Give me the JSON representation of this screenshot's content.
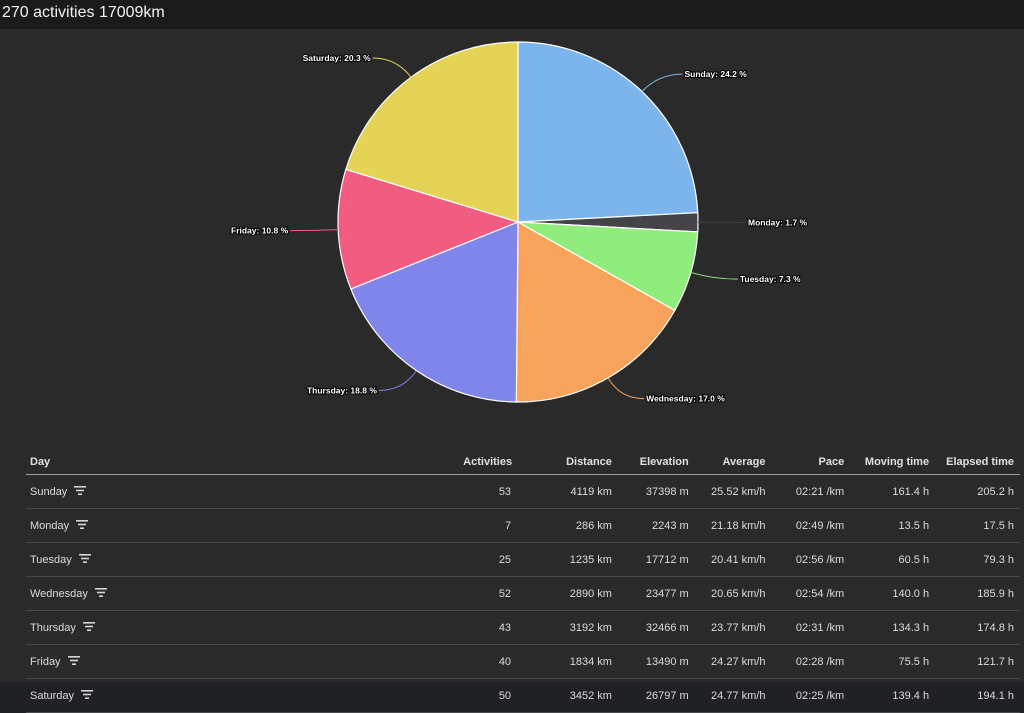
{
  "header": {
    "title": "270 activities 17009km"
  },
  "chart_data": {
    "type": "pie",
    "labels_format": "{label}: {value} %",
    "slices": [
      {
        "label": "Sunday",
        "value": 24.2,
        "color": "#7cb5ec"
      },
      {
        "label": "Monday",
        "value": 1.7,
        "color": "#434348"
      },
      {
        "label": "Tuesday",
        "value": 7.3,
        "color": "#90ed7d"
      },
      {
        "label": "Wednesday",
        "value": 17.0,
        "color": "#f7a35c"
      },
      {
        "label": "Thursday",
        "value": 18.8,
        "color": "#8085e9"
      },
      {
        "label": "Friday",
        "value": 10.8,
        "color": "#f15c80"
      },
      {
        "label": "Saturday",
        "value": 20.3,
        "color": "#e4d354"
      }
    ]
  },
  "table": {
    "columns": [
      "Day",
      "Activities",
      "Distance",
      "Elevation",
      "Average",
      "Pace",
      "Moving time",
      "Elapsed time"
    ],
    "rows": [
      [
        "Sunday",
        "53",
        "4119 km",
        "37398 m",
        "25.52 km/h",
        "02:21 /km",
        "161.4 h",
        "205.2 h"
      ],
      [
        "Monday",
        "7",
        "286 km",
        "2243 m",
        "21.18 km/h",
        "02:49 /km",
        "13.5 h",
        "17.5 h"
      ],
      [
        "Tuesday",
        "25",
        "1235 km",
        "17712 m",
        "20.41 km/h",
        "02:56 /km",
        "60.5 h",
        "79.3 h"
      ],
      [
        "Wednesday",
        "52",
        "2890 km",
        "23477 m",
        "20.65 km/h",
        "02:54 /km",
        "140.0 h",
        "185.9 h"
      ],
      [
        "Thursday",
        "43",
        "3192 km",
        "32466 m",
        "23.77 km/h",
        "02:31 /km",
        "134.3 h",
        "174.8 h"
      ],
      [
        "Friday",
        "40",
        "1834 km",
        "13490 m",
        "24.27 km/h",
        "02:28 /km",
        "75.5 h",
        "121.7 h"
      ],
      [
        "Saturday",
        "50",
        "3452 km",
        "26797 m",
        "24.77 km/h",
        "02:25 /km",
        "139.4 h",
        "194.1 h"
      ]
    ]
  },
  "icons": {
    "row_filter": "filter-lines-icon"
  },
  "colors": {
    "page_bg": "#1a1a1a",
    "panel_bg": "#2a2a2b"
  }
}
